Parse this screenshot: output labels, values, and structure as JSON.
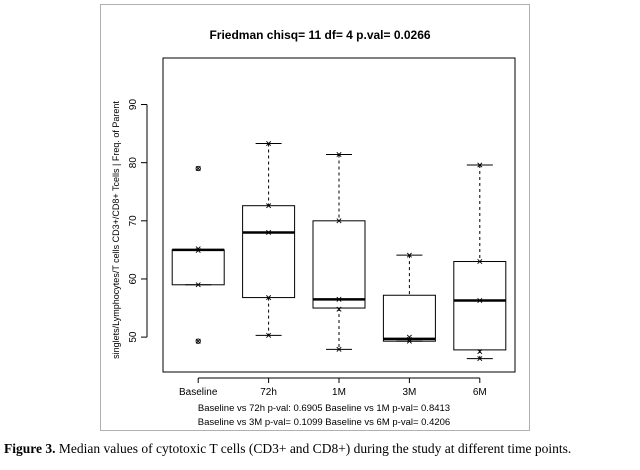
{
  "chart_data": {
    "type": "box",
    "title": "Friedman chisq= 11  df= 4  p.val= 0.0266",
    "ylabel": "singlets/Lymphocytes/T cells CD3+/CD8+ Tcells | Freq. of Parent",
    "xlabel": "",
    "categories": [
      "Baseline",
      "72h",
      "1M",
      "3M",
      "6M"
    ],
    "ylim": [
      44,
      98
    ],
    "yticks": [
      50,
      60,
      70,
      80,
      90
    ],
    "ytick_labels": [
      "50",
      "60",
      "70",
      "80",
      "90"
    ],
    "grid": false,
    "boxes": [
      {
        "name": "Baseline",
        "min": 59.0,
        "q1": 59.0,
        "median": 65.0,
        "q3": 65.0,
        "max": 65.0,
        "outliers": [
          79.0,
          49.3
        ],
        "points": [
          79.0,
          65.2,
          64.9,
          59.0,
          49.3
        ]
      },
      {
        "name": "72h",
        "min": 50.3,
        "q1": 56.8,
        "median": 68.0,
        "q3": 72.6,
        "max": 83.3,
        "outliers": [],
        "points": [
          83.3,
          72.6,
          68.0,
          56.8,
          50.3
        ]
      },
      {
        "name": "1M",
        "min": 47.9,
        "q1": 55.0,
        "median": 56.5,
        "q3": 70.0,
        "max": 81.4,
        "outliers": [],
        "points": [
          81.4,
          70.0,
          56.5,
          54.8,
          47.9
        ]
      },
      {
        "name": "3M",
        "min": 49.3,
        "q1": 49.3,
        "median": 49.7,
        "q3": 57.2,
        "max": 64.1,
        "outliers": [],
        "points": [
          64.1,
          50.0,
          49.6,
          49.3
        ]
      },
      {
        "name": "6M",
        "min": 46.3,
        "q1": 47.8,
        "median": 56.3,
        "q3": 63.0,
        "max": 79.6,
        "outliers": [],
        "points": [
          79.6,
          63.0,
          56.3,
          47.5,
          46.3
        ]
      }
    ],
    "annotations": [
      "Baseline vs 72h p-val: 0.6905  Baseline vs 1M p-val= 0.8413",
      "Baseline vs 3M p-val= 0.1099  Baseline vs 6M p-val= 0.4206"
    ],
    "colors": {
      "axis": "#000000",
      "box": "#000000",
      "frame": "#b0b0b0"
    }
  },
  "caption": {
    "label": "Figure 3.",
    "text": " Median values of cytotoxic T cells (CD3+ and CD8+) during the study at different time points."
  }
}
